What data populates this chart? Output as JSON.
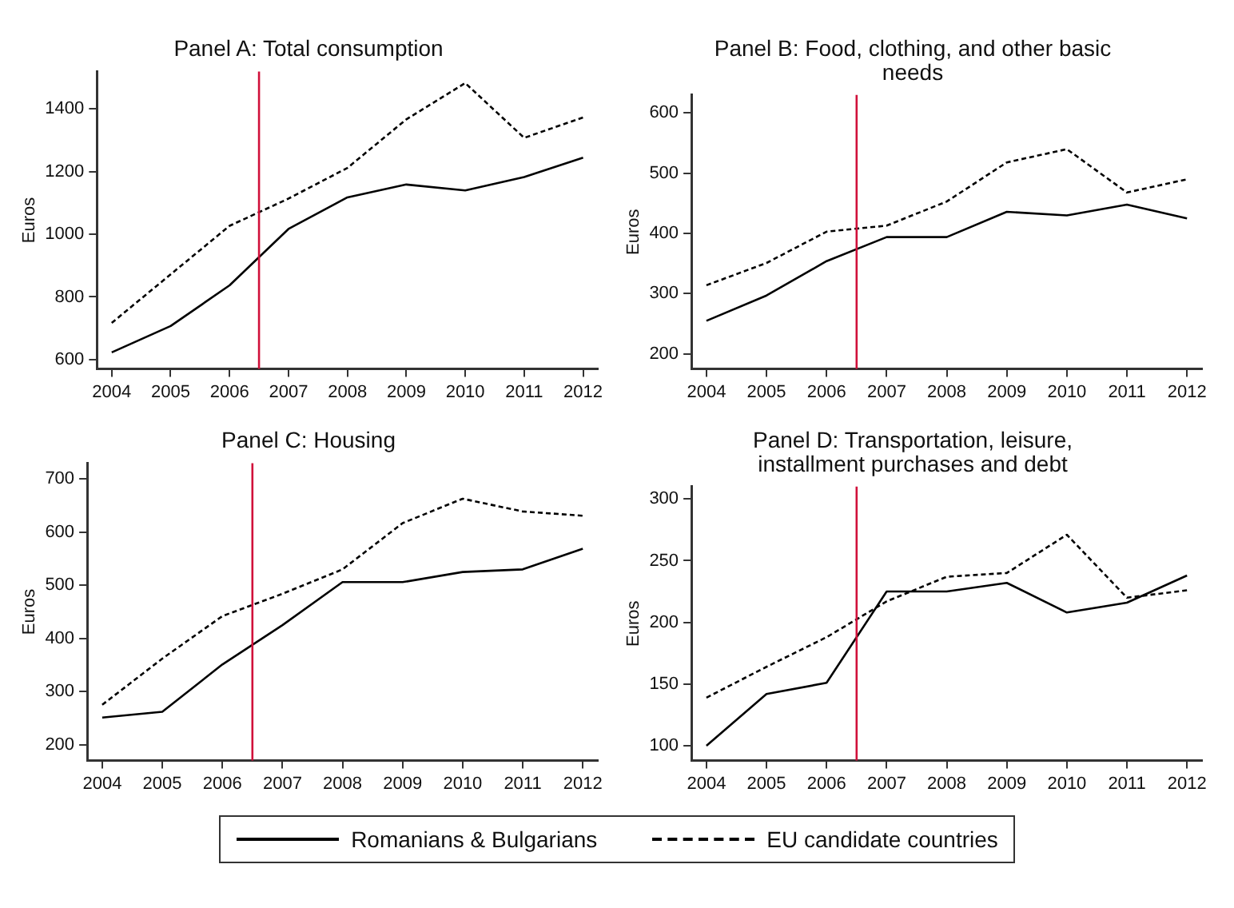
{
  "chart_data": [
    {
      "type": "line",
      "title": "Panel A: Total consumption",
      "ylabel": "Euros",
      "x": [
        2004,
        2005,
        2006,
        2007,
        2008,
        2009,
        2010,
        2011,
        2012
      ],
      "xlim": [
        2003.75,
        2012.25
      ],
      "xticks": [
        2004,
        2005,
        2006,
        2007,
        2008,
        2009,
        2010,
        2011,
        2012
      ],
      "ylim": [
        570,
        1520
      ],
      "yticks": [
        600,
        800,
        1000,
        1200,
        1400
      ],
      "grid": false,
      "legend": "bottom",
      "marker": "none",
      "series": [
        {
          "name": "Romanians & Bulgarians",
          "color": "#000000",
          "line_style": "solid",
          "values": [
            623,
            707,
            837,
            1017,
            1118,
            1159,
            1140,
            1183,
            1245
          ]
        },
        {
          "name": "EU candidate countries",
          "color": "#000000",
          "line_style": "dashed",
          "values": [
            717,
            872,
            1027,
            1114,
            1212,
            1367,
            1483,
            1308,
            1373
          ]
        }
      ],
      "ref_lines": [
        {
          "axis": "x",
          "value": 2006.5,
          "color": "#d0103a"
        }
      ]
    },
    {
      "type": "line",
      "title": "Panel B: Food, clothing, and other basic needs",
      "ylabel": "Euros",
      "x": [
        2004,
        2005,
        2006,
        2007,
        2008,
        2009,
        2010,
        2011,
        2012
      ],
      "xlim": [
        2003.75,
        2012.25
      ],
      "xticks": [
        2004,
        2005,
        2006,
        2007,
        2008,
        2009,
        2010,
        2011,
        2012
      ],
      "ylim": [
        175,
        630
      ],
      "yticks": [
        200,
        300,
        400,
        500,
        600
      ],
      "grid": false,
      "marker": "none",
      "series": [
        {
          "color": "#000000",
          "line_style": "solid",
          "values": [
            255,
            297,
            354,
            394,
            394,
            436,
            430,
            448,
            425
          ]
        },
        {
          "color": "#000000",
          "line_style": "dashed",
          "values": [
            314,
            351,
            403,
            413,
            453,
            518,
            540,
            468,
            490
          ]
        }
      ],
      "ref_lines": [
        {
          "axis": "x",
          "value": 2006.5,
          "color": "#d0103a"
        }
      ]
    },
    {
      "type": "line",
      "title": "Panel C: Housing",
      "ylabel": "Euros",
      "x": [
        2004,
        2005,
        2006,
        2007,
        2008,
        2009,
        2010,
        2011,
        2012
      ],
      "xlim": [
        2003.75,
        2012.25
      ],
      "xticks": [
        2004,
        2005,
        2006,
        2007,
        2008,
        2009,
        2010,
        2011,
        2012
      ],
      "ylim": [
        170,
        730
      ],
      "yticks": [
        200,
        300,
        400,
        500,
        600,
        700
      ],
      "grid": false,
      "marker": "none",
      "series": [
        {
          "color": "#000000",
          "line_style": "solid",
          "values": [
            251,
            262,
            351,
            425,
            506,
            506,
            525,
            530,
            569
          ]
        },
        {
          "color": "#000000",
          "line_style": "dashed",
          "values": [
            275,
            362,
            442,
            484,
            530,
            617,
            663,
            639,
            631
          ]
        }
      ],
      "ref_lines": [
        {
          "axis": "x",
          "value": 2006.5,
          "color": "#d0103a"
        }
      ]
    },
    {
      "type": "line",
      "title": "Panel D: Transportation, leisure, installment purchases and debt",
      "ylabel": "Euros",
      "x": [
        2004,
        2005,
        2006,
        2007,
        2008,
        2009,
        2010,
        2011,
        2012
      ],
      "xlim": [
        2003.75,
        2012.25
      ],
      "xticks": [
        2004,
        2005,
        2006,
        2007,
        2008,
        2009,
        2010,
        2011,
        2012
      ],
      "ylim": [
        88,
        310
      ],
      "yticks": [
        100,
        150,
        200,
        250,
        300
      ],
      "grid": false,
      "marker": "none",
      "series": [
        {
          "color": "#000000",
          "line_style": "solid",
          "values": [
            100,
            142,
            151,
            225,
            225,
            232,
            208,
            216,
            238
          ]
        },
        {
          "color": "#000000",
          "line_style": "dashed",
          "values": [
            139,
            164,
            188,
            217,
            237,
            240,
            271,
            220,
            226
          ]
        }
      ],
      "ref_lines": [
        {
          "axis": "x",
          "value": 2006.5,
          "color": "#d0103a"
        }
      ]
    }
  ]
}
